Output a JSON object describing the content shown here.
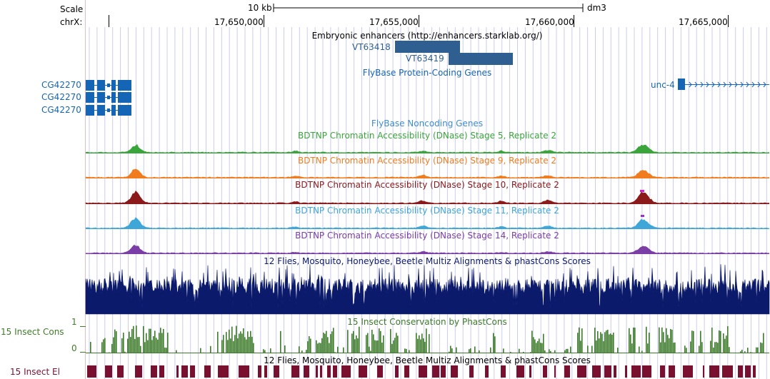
{
  "ruler": {
    "scale_label": "Scale",
    "chrom_label": "chrX:",
    "scale_bar_label": "10 kb",
    "assembly": "dm3",
    "positions": [
      "17,650,000",
      "17,655,000",
      "17,660,000",
      "17,665,000"
    ]
  },
  "tracks": {
    "enhancers": {
      "title": "Embryonic enhancers (http://enhancers.starklab.org/)",
      "items": [
        "VT63418",
        "VT63419"
      ],
      "color": "#2f5f91"
    },
    "flybase_coding": {
      "title": "FlyBase Protein-Coding Genes",
      "genes_left": [
        "CG42270",
        "CG42270",
        "CG42270"
      ],
      "gene_right": "unc-4",
      "color": "#1565b7"
    },
    "flybase_noncoding": {
      "title": "FlyBase Noncoding Genes",
      "color": "#3f8ccc"
    },
    "dnase": [
      {
        "title": "BDTNP Chromatin Accessibility (DNase) Stage 5, Replicate 2",
        "color": "#3aa53a"
      },
      {
        "title": "BDTNP Chromatin Accessibility (DNase) Stage 9, Replicate 2",
        "color": "#f07c1e"
      },
      {
        "title": "BDTNP Chromatin Accessibility (DNase) Stage 10, Replicate 2",
        "color": "#8b1a1a"
      },
      {
        "title": "BDTNP Chromatin Accessibility (DNase) Stage 11, Replicate 2",
        "color": "#3fa6d8"
      },
      {
        "title": "BDTNP Chromatin Accessibility (DNase) Stage 14, Replicate 2",
        "color": "#7b3ea6"
      }
    ],
    "multiz": {
      "title": "12 Flies, Mosquito, Honeybee, Beetle Multiz Alignments & phastCons Scores",
      "color": "#0b1a6b"
    },
    "cons": {
      "title": "15 Insect Conservation by PhastCons",
      "side_label": "15 Insect Cons",
      "axis_top": "1",
      "axis_bottom": "0",
      "color": "#3e7b2a"
    },
    "elements": {
      "title": "12 Flies, Mosquito, Honeybee, Beetle Multiz Alignments & phastCons Scores",
      "side_label": "15 Insect El",
      "color": "#7a1030"
    }
  },
  "colors": {
    "grid": "#ccccee",
    "margin_line": "#f4b8b8"
  }
}
